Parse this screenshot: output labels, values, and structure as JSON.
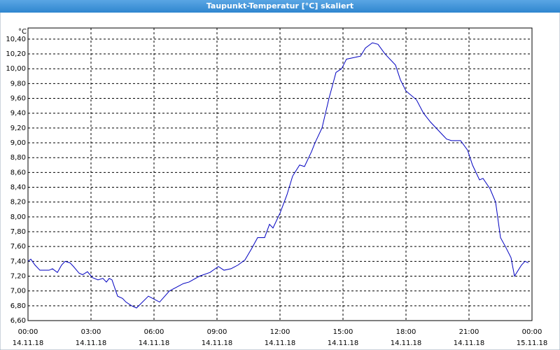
{
  "chart_data": {
    "type": "line",
    "title": "Taupunkt-Temperatur [°C] skaliert",
    "y_unit": "°C",
    "x": [
      "14.11.18 00:00",
      "14.11.18 00:08",
      "14.11.18 00:20",
      "14.11.18 00:34",
      "14.11.18 01:00",
      "14.11.18 01:10",
      "14.11.18 01:24",
      "14.11.18 01:36",
      "14.11.18 01:46",
      "14.11.18 02:00",
      "14.11.18 02:10",
      "14.11.18 02:26",
      "14.11.18 02:36",
      "14.11.18 02:50",
      "14.11.18 03:04",
      "14.11.18 03:20",
      "14.11.18 03:34",
      "14.11.18 03:44",
      "14.11.18 03:52",
      "14.11.18 04:00",
      "14.11.18 04:16",
      "14.11.18 04:30",
      "14.11.18 04:40",
      "14.11.18 04:56",
      "14.11.18 05:10",
      "14.11.18 05:44",
      "14.11.18 06:16",
      "14.11.18 06:44",
      "14.11.18 07:24",
      "14.11.18 07:40",
      "14.11.18 08:10",
      "14.11.18 08:40",
      "14.11.18 09:04",
      "14.11.18 09:20",
      "14.11.18 09:40",
      "14.11.18 10:00",
      "14.11.18 10:20",
      "14.11.18 10:40",
      "14.11.18 10:56",
      "14.11.18 11:16",
      "14.11.18 11:30",
      "14.11.18 11:40",
      "14.11.18 12:00",
      "14.11.18 12:20",
      "14.11.18 12:36",
      "14.11.18 12:56",
      "14.11.18 13:10",
      "14.11.18 13:30",
      "14.11.18 13:40",
      "14.11.18 14:00",
      "14.11.18 14:20",
      "14.11.18 14:40",
      "14.11.18 14:56",
      "14.11.18 15:10",
      "14.11.18 15:30",
      "14.11.18 15:50",
      "14.11.18 16:04",
      "14.11.18 16:24",
      "14.11.18 16:40",
      "14.11.18 17:00",
      "14.11.18 17:30",
      "14.11.18 17:44",
      "14.11.18 18:00",
      "14.11.18 18:30",
      "14.11.18 18:50",
      "14.11.18 19:10",
      "14.11.18 19:30",
      "14.11.18 19:56",
      "14.11.18 20:10",
      "14.11.18 20:36",
      "14.11.18 20:56",
      "14.11.18 21:10",
      "14.11.18 21:30",
      "14.11.18 21:40",
      "14.11.18 22:00",
      "14.11.18 22:16",
      "14.11.18 22:30",
      "14.11.18 22:44",
      "14.11.18 23:00",
      "14.11.18 23:10",
      "14.11.18 23:30",
      "14.11.18 23:40",
      "14.11.18 23:50"
    ],
    "series": [
      {
        "color": "#0000c0",
        "values": [
          7.4,
          7.43,
          7.35,
          7.28,
          7.28,
          7.3,
          7.25,
          7.35,
          7.4,
          7.38,
          7.33,
          7.24,
          7.22,
          7.26,
          7.18,
          7.15,
          7.17,
          7.12,
          7.17,
          7.15,
          6.93,
          6.9,
          6.85,
          6.8,
          6.77,
          6.93,
          6.85,
          7.0,
          7.1,
          7.12,
          7.2,
          7.25,
          7.33,
          7.28,
          7.3,
          7.35,
          7.42,
          7.58,
          7.72,
          7.72,
          7.9,
          7.85,
          8.05,
          8.3,
          8.55,
          8.7,
          8.68,
          8.88,
          9.0,
          9.2,
          9.6,
          9.95,
          10.0,
          10.13,
          10.15,
          10.17,
          10.28,
          10.35,
          10.33,
          10.2,
          10.05,
          9.85,
          9.7,
          9.58,
          9.4,
          9.28,
          9.18,
          9.05,
          9.03,
          9.03,
          8.9,
          8.7,
          8.5,
          8.52,
          8.38,
          8.2,
          7.72,
          7.6,
          7.45,
          7.2,
          7.35,
          7.4,
          7.38
        ]
      }
    ],
    "xlim": [
      "14.11.18 00:00",
      "15.11.18 00:00"
    ],
    "xticks": [
      {
        "value": "14.11.18 00:00",
        "label": [
          "00:00",
          "14.11.18"
        ]
      },
      {
        "value": "14.11.18 03:00",
        "label": [
          "03:00",
          "14.11.18"
        ]
      },
      {
        "value": "14.11.18 06:00",
        "label": [
          "06:00",
          "14.11.18"
        ]
      },
      {
        "value": "14.11.18 09:00",
        "label": [
          "09:00",
          "14.11.18"
        ]
      },
      {
        "value": "14.11.18 12:00",
        "label": [
          "12:00",
          "14.11.18"
        ]
      },
      {
        "value": "14.11.18 15:00",
        "label": [
          "15:00",
          "14.11.18"
        ]
      },
      {
        "value": "14.11.18 18:00",
        "label": [
          "18:00",
          "14.11.18"
        ]
      },
      {
        "value": "14.11.18 21:00",
        "label": [
          "21:00",
          "14.11.18"
        ]
      },
      {
        "value": "15.11.18 00:00",
        "label": [
          "00:00",
          "15.11.18"
        ]
      }
    ],
    "ylim": [
      6.6,
      10.55
    ],
    "yticks": [
      {
        "value": 6.6,
        "label": "6,60"
      },
      {
        "value": 6.8,
        "label": "6,80"
      },
      {
        "value": 7.0,
        "label": "7,00"
      },
      {
        "value": 7.2,
        "label": "7,20"
      },
      {
        "value": 7.4,
        "label": "7,40"
      },
      {
        "value": 7.6,
        "label": "7,60"
      },
      {
        "value": 7.8,
        "label": "7,80"
      },
      {
        "value": 8.0,
        "label": "8,00"
      },
      {
        "value": 8.2,
        "label": "8,20"
      },
      {
        "value": 8.4,
        "label": "8,40"
      },
      {
        "value": 8.6,
        "label": "8,60"
      },
      {
        "value": 8.8,
        "label": "8,80"
      },
      {
        "value": 9.0,
        "label": "9,00"
      },
      {
        "value": 9.2,
        "label": "9,20"
      },
      {
        "value": 9.4,
        "label": "9,40"
      },
      {
        "value": 9.6,
        "label": "9,60"
      },
      {
        "value": 9.8,
        "label": "9,80"
      },
      {
        "value": 10.0,
        "label": "10,00"
      },
      {
        "value": 10.2,
        "label": "10,20"
      },
      {
        "value": 10.4,
        "label": "10,40"
      }
    ],
    "grid": true
  }
}
